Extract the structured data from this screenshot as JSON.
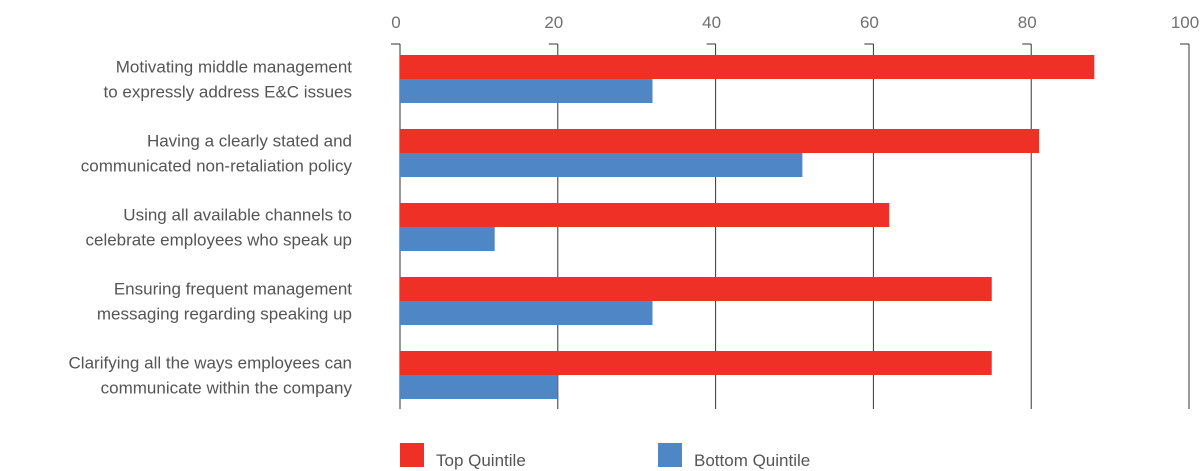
{
  "chart_data": {
    "type": "bar",
    "orientation": "horizontal",
    "title": "",
    "xlabel": "",
    "ylabel": "",
    "xlim": [
      0,
      100
    ],
    "x_ticks": [
      "0",
      "20",
      "40",
      "60",
      "80",
      "100"
    ],
    "grid": true,
    "legend_position": "bottom",
    "categories": [
      [
        "Motivating middle management",
        "to expressly address E&C issues"
      ],
      [
        "Having a clearly stated and",
        "communicated non-retaliation policy"
      ],
      [
        "Using all available channels to",
        "celebrate employees who speak up"
      ],
      [
        "Ensuring frequent management",
        "messaging regarding speaking up"
      ],
      [
        "Clarifying all the ways employees can",
        "communicate within the company"
      ]
    ],
    "series": [
      {
        "name": "Top Quintile",
        "color": "#ee3027",
        "values": [
          88,
          81,
          62,
          75,
          75
        ]
      },
      {
        "name": "Bottom Quintile",
        "color": "#4f86c6",
        "values": [
          32,
          51,
          12,
          32,
          20
        ]
      }
    ]
  }
}
